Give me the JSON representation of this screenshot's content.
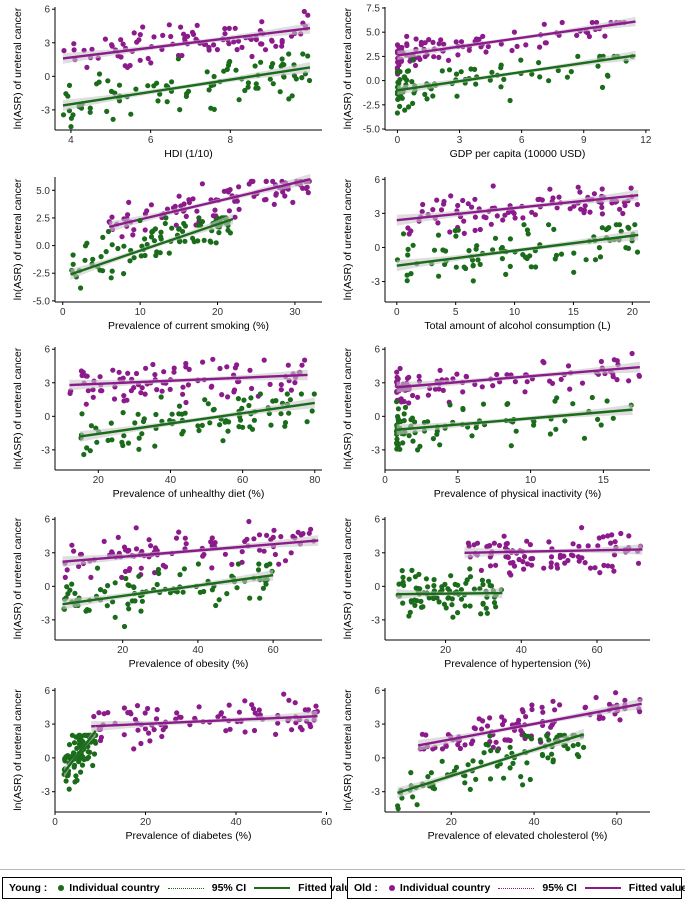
{
  "colors": {
    "young": "#1a6b1a",
    "old": "#8b1a8b",
    "ci": "#c8c8c8"
  },
  "legend": {
    "young": {
      "title": "Young :",
      "points": "Individual country",
      "ci": "95% CI",
      "fit": "Fitted values"
    },
    "old": {
      "title": "Old :",
      "points": "Individual country",
      "ci": "95% CI",
      "fit": "Fitted values"
    }
  },
  "chart_data": [
    {
      "type": "scatter",
      "xlabel": "HDI (1/10)",
      "ylabel": "ln(ASR) of ureteral cancer",
      "xlim": [
        3.6,
        10.3
      ],
      "ylim": [
        -4.8,
        6.2
      ],
      "xticks": [
        4,
        6,
        8
      ],
      "yticks": [
        -3,
        0,
        3,
        6
      ],
      "young": {
        "xr": [
          3.8,
          10.0
        ],
        "yr": [
          -4.5,
          2.0
        ],
        "fit": [
          -2.6,
          0.8
        ]
      },
      "old": {
        "xr": [
          3.8,
          10.0
        ],
        "yr": [
          0.8,
          5.8
        ],
        "fit": [
          1.6,
          4.3
        ]
      }
    },
    {
      "type": "scatter",
      "xlabel": "GDP per capita (10000 USD)",
      "ylabel": "ln(ASR) of ureteral cancer",
      "xlim": [
        -0.6,
        12.2
      ],
      "ylim": [
        -5.1,
        7.6
      ],
      "xticks": [
        0,
        3,
        6,
        9,
        12
      ],
      "yticks": [
        -5.0,
        -2.5,
        0.0,
        2.5,
        5.0,
        7.5
      ],
      "tickfmt": "1",
      "young": {
        "xr": [
          0,
          11.5
        ],
        "yr": [
          -4.5,
          2.5
        ],
        "fit": [
          -1.0,
          2.6
        ],
        "skew": true
      },
      "old": {
        "xr": [
          0,
          11.5
        ],
        "yr": [
          0.5,
          6.0
        ],
        "fit": [
          2.6,
          6.1
        ],
        "skew": true
      }
    },
    {
      "type": "scatter",
      "xlabel": "Prevalence of current smoking (%)",
      "ylabel": "ln(ASR) of ureteral cancer",
      "xlim": [
        -1.0,
        33.5
      ],
      "ylim": [
        -5.1,
        6.2
      ],
      "xticks": [
        0,
        10,
        20,
        30
      ],
      "yticks": [
        -5.0,
        -2.5,
        0.0,
        2.5,
        5.0
      ],
      "tickfmt": "1",
      "young": {
        "xr": [
          1,
          22
        ],
        "yr": [
          -4.5,
          2.5
        ],
        "fit": [
          -2.6,
          2.4
        ]
      },
      "old": {
        "xr": [
          6,
          32
        ],
        "yr": [
          0.8,
          5.8
        ],
        "fit": [
          1.7,
          6.0
        ]
      }
    },
    {
      "type": "scatter",
      "xlabel": "Total amount of alcohol consumption (L)",
      "ylabel": "ln(ASR) of ureteral cancer",
      "xlim": [
        -1.0,
        21.5
      ],
      "ylim": [
        -4.8,
        6.2
      ],
      "xticks": [
        0,
        5,
        10,
        15,
        20
      ],
      "yticks": [
        -3,
        0,
        3,
        6
      ],
      "young": {
        "xr": [
          0,
          20.5
        ],
        "yr": [
          -4.5,
          2.0
        ],
        "fit": [
          -1.6,
          1.1
        ]
      },
      "old": {
        "xr": [
          0,
          20.5
        ],
        "yr": [
          0.8,
          5.8
        ],
        "fit": [
          2.4,
          4.6
        ]
      }
    },
    {
      "type": "scatter",
      "xlabel": "Prevalence of unhealthy diet (%)",
      "ylabel": "ln(ASR) of ureteral cancer",
      "xlim": [
        8,
        82
      ],
      "ylim": [
        -4.8,
        6.2
      ],
      "xticks": [
        20,
        40,
        60,
        80
      ],
      "yticks": [
        -3,
        0,
        3,
        6
      ],
      "young": {
        "xr": [
          15,
          80
        ],
        "yr": [
          -4.5,
          2.0
        ],
        "fit": [
          -1.8,
          1.2
        ]
      },
      "old": {
        "xr": [
          12,
          78
        ],
        "yr": [
          0.8,
          5.8
        ],
        "fit": [
          2.8,
          3.7
        ]
      }
    },
    {
      "type": "scatter",
      "xlabel": "Prevalence of physical inactivity (%)",
      "ylabel": "ln(ASR) of ureteral cancer",
      "xlim": [
        0,
        18.2
      ],
      "ylim": [
        -4.8,
        6.2
      ],
      "xticks": [
        0,
        5,
        10,
        15
      ],
      "yticks": [
        -3,
        0,
        3,
        6
      ],
      "young": {
        "xr": [
          0.8,
          17
        ],
        "yr": [
          -4.5,
          2.0
        ],
        "fit": [
          -1.2,
          0.6
        ],
        "skew": true
      },
      "old": {
        "xr": [
          0.8,
          17.5
        ],
        "yr": [
          0.8,
          5.8
        ],
        "fit": [
          2.6,
          4.4
        ],
        "skew": true
      }
    },
    {
      "type": "scatter",
      "xlabel": "Prevalence of obesity (%)",
      "ylabel": "ln(ASR) of ureteral cancer",
      "xlim": [
        2,
        73
      ],
      "ylim": [
        -4.8,
        6.2
      ],
      "xticks": [
        20,
        40,
        60
      ],
      "yticks": [
        -3,
        0,
        3,
        6
      ],
      "young": {
        "xr": [
          4,
          60
        ],
        "yr": [
          -4.5,
          2.0
        ],
        "fit": [
          -1.6,
          1.0
        ]
      },
      "old": {
        "xr": [
          4,
          72
        ],
        "yr": [
          0.8,
          5.8
        ],
        "fit": [
          2.2,
          4.1
        ]
      }
    },
    {
      "type": "scatter",
      "xlabel": "Prevalence of hypertension (%)",
      "ylabel": "ln(ASR) of ureteral cancer",
      "xlim": [
        4,
        74
      ],
      "ylim": [
        -4.8,
        6.2
      ],
      "xticks": [
        20,
        40,
        60
      ],
      "yticks": [
        -3,
        0,
        3,
        6
      ],
      "young": {
        "xr": [
          7,
          35
        ],
        "yr": [
          -4.5,
          2.0
        ],
        "fit": [
          -0.7,
          -0.6
        ]
      },
      "old": {
        "xr": [
          25,
          72
        ],
        "yr": [
          0.8,
          5.8
        ],
        "fit": [
          3.0,
          3.3
        ]
      }
    },
    {
      "type": "scatter",
      "xlabel": "Prevalence of diabetes (%)",
      "ylabel": "ln(ASR) of ureteral cancer",
      "xlim": [
        0,
        59
      ],
      "ylim": [
        -4.8,
        6.2
      ],
      "xticks": [
        0,
        20,
        40,
        60
      ],
      "yticks": [
        -3,
        0,
        3,
        6
      ],
      "young": {
        "xr": [
          2,
          9
        ],
        "yr": [
          -4.5,
          2.0
        ],
        "fit": [
          -1.3,
          2.4
        ]
      },
      "old": {
        "xr": [
          8,
          58
        ],
        "yr": [
          0.8,
          5.8
        ],
        "fit": [
          2.8,
          3.7
        ]
      }
    },
    {
      "type": "scatter",
      "xlabel": "Prevalence of elevated cholesterol (%)",
      "ylabel": "ln(ASR) of ureteral cancer",
      "xlim": [
        4,
        68
      ],
      "ylim": [
        -4.8,
        6.2
      ],
      "xticks": [
        20,
        40,
        60
      ],
      "yticks": [
        -3,
        0,
        3,
        6
      ],
      "young": {
        "xr": [
          7,
          52
        ],
        "yr": [
          -4.5,
          2.0
        ],
        "fit": [
          -3.1,
          2.1
        ]
      },
      "old": {
        "xr": [
          12,
          66
        ],
        "yr": [
          0.8,
          5.8
        ],
        "fit": [
          1.1,
          4.8
        ]
      }
    }
  ]
}
